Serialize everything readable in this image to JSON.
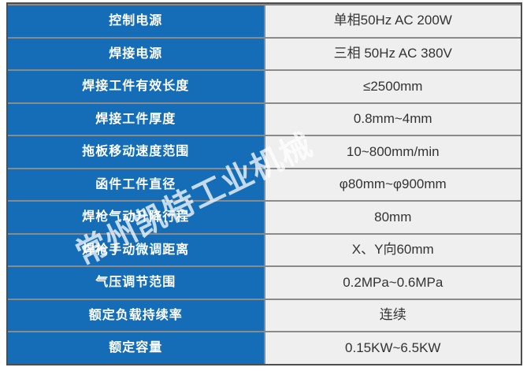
{
  "colors": {
    "label_bg": "#146db6",
    "label_text": "#ffffff",
    "value_bg": "#efefef",
    "value_text": "#333333",
    "border_outer": "#4d4d4d",
    "border_inner": "#8a8a8a"
  },
  "watermark": {
    "text": "常州凯特工业机械"
  },
  "table": {
    "rows": [
      {
        "label": "控制电源",
        "value": "单相50Hz AC 200W"
      },
      {
        "label": "焊接电源",
        "value": "三相 50Hz AC 380V"
      },
      {
        "label": "焊接工件有效长度",
        "value": "≤2500mm"
      },
      {
        "label": "焊接工件厚度",
        "value": "0.8mm~4mm"
      },
      {
        "label": "拖板移动速度范围",
        "value": "10~800mm/min"
      },
      {
        "label": "函件工件直径",
        "value": "φ80mm~φ900mm"
      },
      {
        "label": "焊枪气动升降行程",
        "value": "80mm"
      },
      {
        "label": "焊枪手动微调距离",
        "value": "X、Y向60mm"
      },
      {
        "label": "气压调节范围",
        "value": "0.2MPa~0.6MPa"
      },
      {
        "label": "额定负载持续率",
        "value": "连续"
      },
      {
        "label": "额定容量",
        "value": "0.15KW~6.5KW"
      }
    ]
  }
}
